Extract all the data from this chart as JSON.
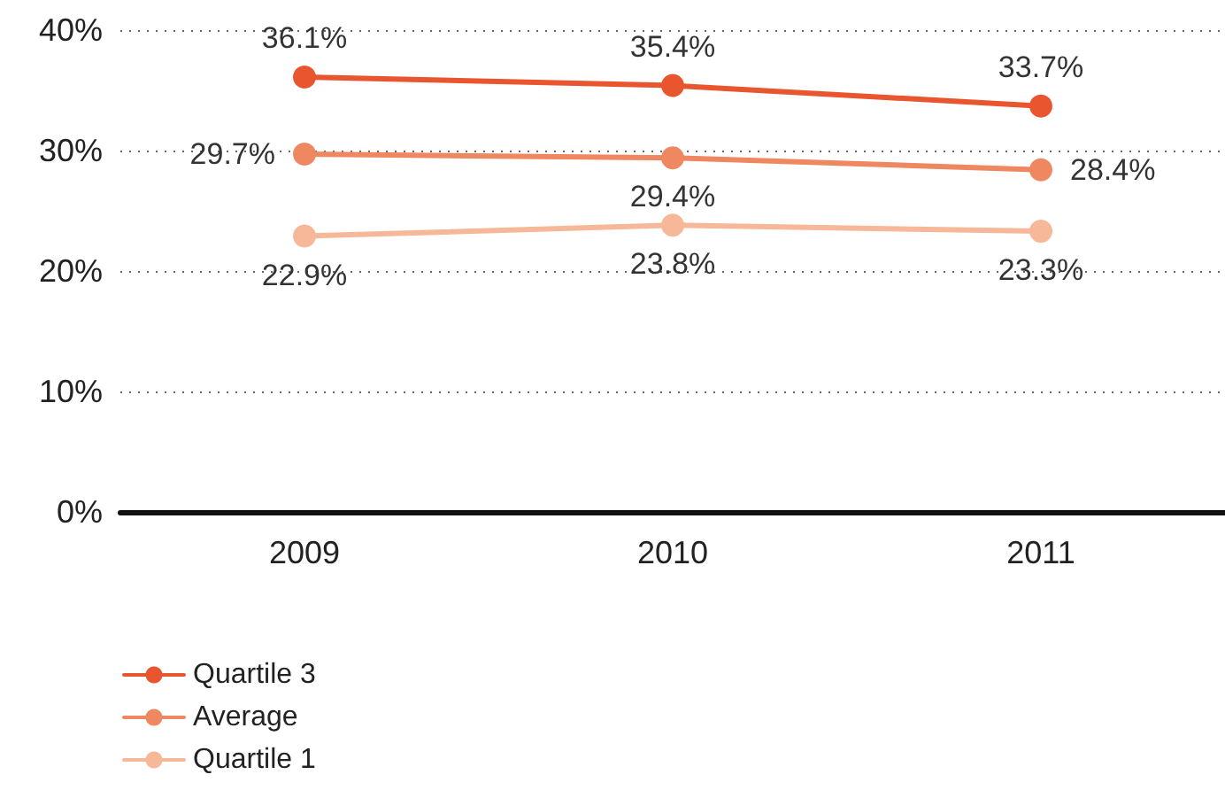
{
  "chart_data": {
    "type": "line",
    "categories": [
      "2009",
      "2010",
      "2011"
    ],
    "series": [
      {
        "name": "Quartile 3",
        "color": "#e8552f",
        "values": [
          36.1,
          35.4,
          33.7
        ],
        "value_labels": [
          "36.1%",
          "35.4%",
          "33.7%"
        ]
      },
      {
        "name": "Average",
        "color": "#ef8760",
        "values": [
          29.7,
          29.4,
          28.4
        ],
        "value_labels": [
          "29.7%",
          "29.4%",
          "28.4%"
        ]
      },
      {
        "name": "Quartile 1",
        "color": "#f6b898",
        "values": [
          22.9,
          23.8,
          23.3
        ],
        "value_labels": [
          "22.9%",
          "23.8%",
          "23.3%"
        ]
      }
    ],
    "ylim": [
      0,
      40
    ],
    "yticks": [
      {
        "value": 0,
        "label": "0%"
      },
      {
        "value": 10,
        "label": "10%"
      },
      {
        "value": 20,
        "label": "20%"
      },
      {
        "value": 30,
        "label": "30%"
      },
      {
        "value": 40,
        "label": "40%"
      }
    ],
    "grid": "y",
    "legend": "bottom left",
    "marker": "circle",
    "line_style": "solid"
  }
}
